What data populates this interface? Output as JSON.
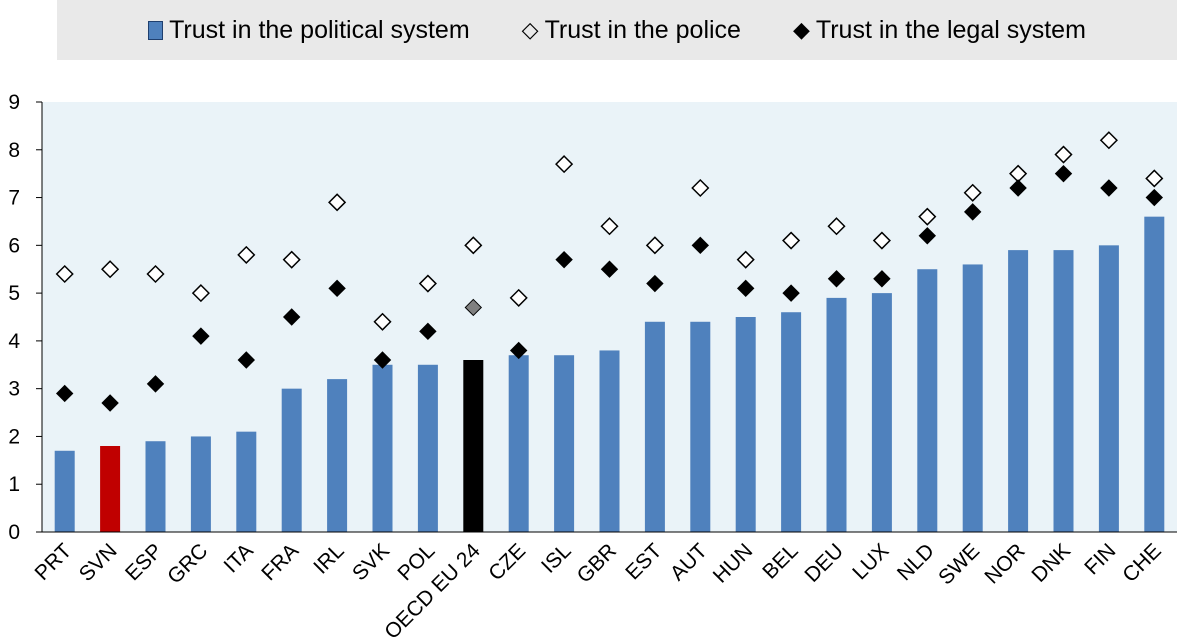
{
  "legend": {
    "political_label": "Trust in the political system",
    "police_label": "Trust in the police",
    "legal_label": "Trust in the legal system",
    "police_symbol": "◇",
    "legal_symbol": "◆"
  },
  "colors": {
    "bar": "#4f81bd",
    "bar_highlight_slovenia": "#c00000",
    "bar_highlight_oecd": "#000000",
    "plot_background": "#eaf3f8",
    "marker_oecd_legal": "#808080"
  },
  "chart_data": {
    "type": "bar",
    "title": "",
    "xlabel": "",
    "ylabel": "",
    "ylim": [
      0,
      9
    ],
    "yticks": [
      0,
      1,
      2,
      3,
      4,
      5,
      6,
      7,
      8,
      9
    ],
    "grid": false,
    "legend_position": "top",
    "categories": [
      "PRT",
      "SVN",
      "ESP",
      "GRC",
      "ITA",
      "FRA",
      "IRL",
      "SVK",
      "POL",
      "OECD EU 24",
      "CZE",
      "ISL",
      "GBR",
      "EST",
      "AUT",
      "HUN",
      "BEL",
      "DEU",
      "LUX",
      "NLD",
      "SWE",
      "NOR",
      "DNK",
      "FIN",
      "CHE"
    ],
    "series": [
      {
        "name": "Trust in the political system",
        "kind": "bar",
        "values": [
          1.7,
          1.8,
          1.9,
          2.0,
          2.1,
          3.0,
          3.2,
          3.5,
          3.5,
          3.6,
          3.7,
          3.7,
          3.8,
          4.4,
          4.4,
          4.5,
          4.6,
          4.9,
          5.0,
          5.5,
          5.6,
          5.9,
          5.9,
          6.0,
          6.6
        ]
      },
      {
        "name": "Trust in the police",
        "kind": "marker-open-diamond",
        "values": [
          5.4,
          5.5,
          5.4,
          5.0,
          5.8,
          5.7,
          6.9,
          4.4,
          5.2,
          6.0,
          4.9,
          7.7,
          6.4,
          6.0,
          7.2,
          5.7,
          6.1,
          6.4,
          6.1,
          6.6,
          7.1,
          7.5,
          7.9,
          8.2,
          7.4
        ]
      },
      {
        "name": "Trust in the legal system",
        "kind": "marker-filled-diamond",
        "values": [
          2.9,
          2.7,
          3.1,
          4.1,
          3.6,
          4.5,
          5.1,
          3.6,
          4.2,
          4.7,
          3.8,
          5.7,
          5.5,
          5.2,
          6.0,
          5.1,
          5.0,
          5.3,
          5.3,
          6.2,
          6.7,
          7.2,
          7.5,
          7.2,
          7.0
        ]
      }
    ],
    "highlights": {
      "SVN": "red",
      "OECD EU 24": "black"
    }
  }
}
